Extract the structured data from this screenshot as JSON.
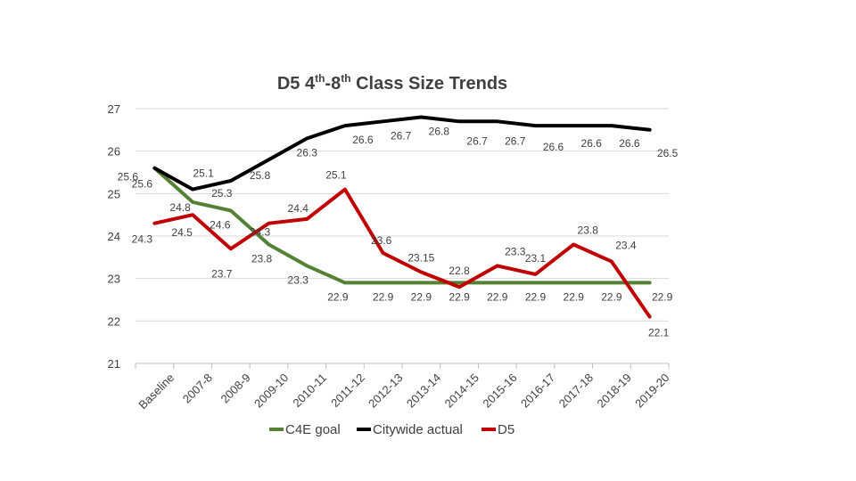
{
  "chart_data": {
    "type": "line",
    "title": {
      "prefix": "D5 4",
      "sup1": "th",
      "mid": "-8",
      "sup2": "th",
      "suffix": " Class Size Trends"
    },
    "categories": [
      "Baseline",
      "2007-8",
      "2008-9",
      "2009-10",
      "2010-11",
      "2011-12",
      "2012-13",
      "2013-14",
      "2014-15",
      "2015-16",
      "2016-17",
      "2017-18",
      "2018-19",
      "2019-20"
    ],
    "ylim": [
      21,
      27
    ],
    "yticks": [
      "21",
      "22",
      "23",
      "24",
      "25",
      "26",
      "27"
    ],
    "grid": true,
    "legend_position": "bottom",
    "series": [
      {
        "name": "C4E goal",
        "color": "#548235",
        "values": [
          25.6,
          24.8,
          24.6,
          23.8,
          23.3,
          22.9,
          22.9,
          22.9,
          22.9,
          22.9,
          22.9,
          22.9,
          22.9,
          22.9
        ],
        "labels": [
          "25.6",
          "24.8",
          "24.6",
          "23.8",
          "23.3",
          "22.9",
          "22.9",
          "22.9",
          "22.9",
          "22.9",
          "22.9",
          "22.9",
          "22.9",
          "22.9"
        ]
      },
      {
        "name": "Citywide actual",
        "color": "#000000",
        "values": [
          25.6,
          25.1,
          25.3,
          25.8,
          26.3,
          26.6,
          26.7,
          26.8,
          26.7,
          26.7,
          26.6,
          26.6,
          26.6,
          26.5
        ],
        "labels": [
          "25.6",
          "25.1",
          "25.3",
          "25.8",
          "26.3",
          "26.6",
          "26.7",
          "26.8",
          "26.7",
          "26.7",
          "26.6",
          "26.6",
          "26.6",
          "26.5"
        ]
      },
      {
        "name": "D5",
        "color": "#c00000",
        "values": [
          24.3,
          24.5,
          23.7,
          24.3,
          24.4,
          25.1,
          23.6,
          23.15,
          22.8,
          23.3,
          23.1,
          23.8,
          23.4,
          22.1
        ],
        "labels": [
          "24.3",
          "24.5",
          "23.7",
          "24.3",
          "24.4",
          "25.1",
          "23.6",
          "23.15",
          "22.8",
          "23.3",
          "23.1",
          "23.8",
          "23.4",
          "22.1"
        ]
      }
    ]
  }
}
